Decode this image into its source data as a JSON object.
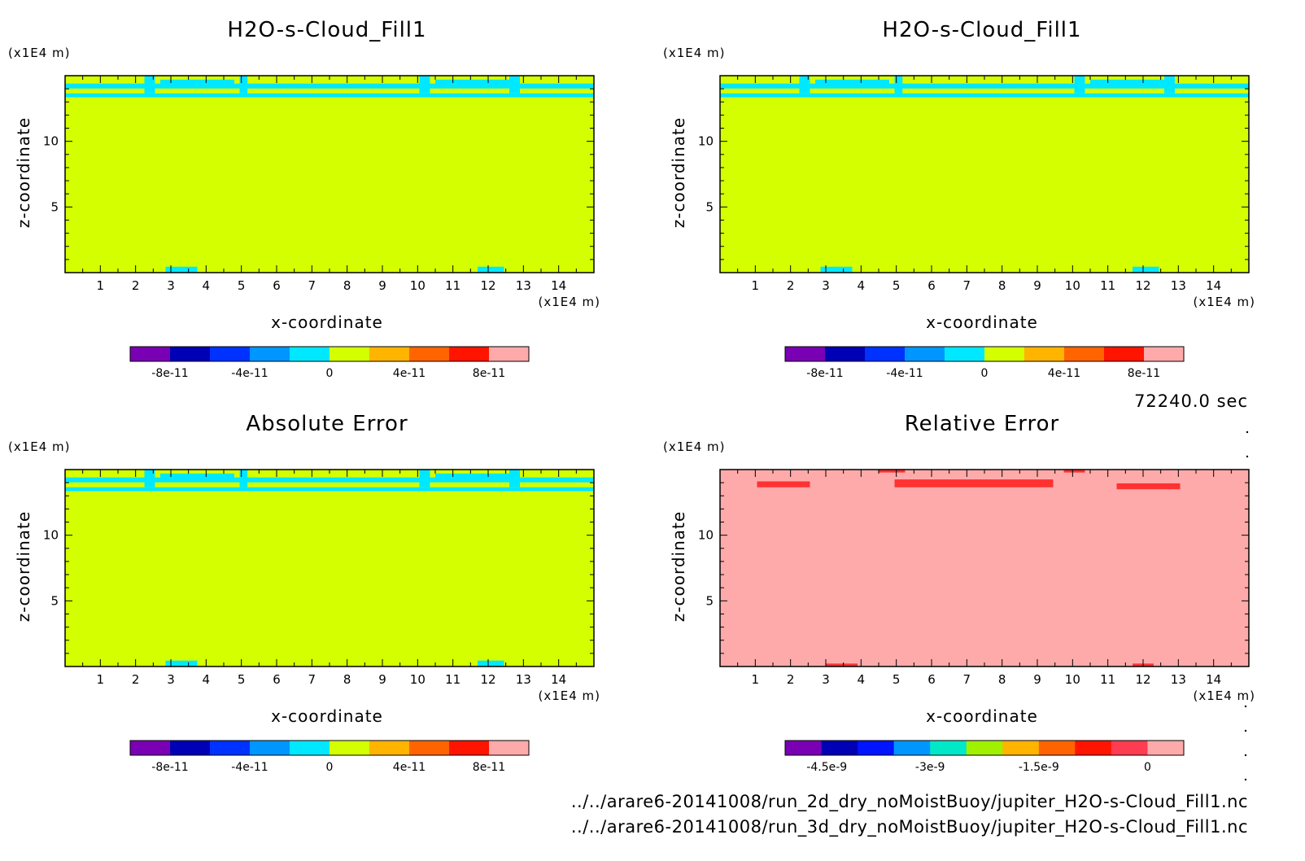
{
  "time_label": "72240.0 sec",
  "files": [
    "../../arare6-20141008/run_2d_dry_noMoistBuoy/jupiter_H2O-s-Cloud_Fill1.nc",
    "../../arare6-20141008/run_3d_dry_noMoistBuoy/jupiter_H2O-s-Cloud_Fill1.nc"
  ],
  "chart_data": [
    {
      "type": "heatmap",
      "title": "H2O-s-Cloud_Fill1",
      "xlabel": "x-coordinate",
      "ylabel": "z-coordinate",
      "x_unit": "(x1E4 m)",
      "y_unit": "(x1E4 m)",
      "x_ticks": [
        "1",
        "2",
        "3",
        "4",
        "5",
        "6",
        "7",
        "8",
        "9",
        "10",
        "11",
        "12",
        "13",
        "14"
      ],
      "y_ticks": [
        "5",
        "10"
      ],
      "xlim": [
        0,
        15
      ],
      "ylim": [
        0,
        15
      ],
      "background_value": 0,
      "background_color": "#d4ff00",
      "feature_color": "#00e8ff",
      "colorbar": {
        "colors": [
          "#7a00b4",
          "#0000b4",
          "#0032ff",
          "#0096ff",
          "#00e8ff",
          "#d4ff00",
          "#ffb400",
          "#ff6400",
          "#ff1400",
          "#ffaaaa"
        ],
        "tick_labels": [
          "-8e-11",
          "-4e-11",
          "0",
          "4e-11",
          "8e-11"
        ],
        "tick_boundaries": [
          1,
          3,
          5,
          7,
          9
        ]
      }
    },
    {
      "type": "heatmap",
      "title": "H2O-s-Cloud_Fill1",
      "xlabel": "x-coordinate",
      "ylabel": "z-coordinate",
      "x_unit": "(x1E4 m)",
      "y_unit": "(x1E4 m)",
      "x_ticks": [
        "1",
        "2",
        "3",
        "4",
        "5",
        "6",
        "7",
        "8",
        "9",
        "10",
        "11",
        "12",
        "13",
        "14"
      ],
      "y_ticks": [
        "5",
        "10"
      ],
      "xlim": [
        0,
        15
      ],
      "ylim": [
        0,
        15
      ],
      "background_value": 0,
      "background_color": "#d4ff00",
      "feature_color": "#00e8ff",
      "colorbar": {
        "colors": [
          "#7a00b4",
          "#0000b4",
          "#0032ff",
          "#0096ff",
          "#00e8ff",
          "#d4ff00",
          "#ffb400",
          "#ff6400",
          "#ff1400",
          "#ffaaaa"
        ],
        "tick_labels": [
          "-8e-11",
          "-4e-11",
          "0",
          "4e-11",
          "8e-11"
        ],
        "tick_boundaries": [
          1,
          3,
          5,
          7,
          9
        ]
      }
    },
    {
      "type": "heatmap",
      "title": "Absolute Error",
      "xlabel": "x-coordinate",
      "ylabel": "z-coordinate",
      "x_unit": "(x1E4 m)",
      "y_unit": "(x1E4 m)",
      "x_ticks": [
        "1",
        "2",
        "3",
        "4",
        "5",
        "6",
        "7",
        "8",
        "9",
        "10",
        "11",
        "12",
        "13",
        "14"
      ],
      "y_ticks": [
        "5",
        "10"
      ],
      "xlim": [
        0,
        15
      ],
      "ylim": [
        0,
        15
      ],
      "background_value": 0,
      "background_color": "#d4ff00",
      "feature_color": "#00e8ff",
      "colorbar": {
        "colors": [
          "#7a00b4",
          "#0000b4",
          "#0032ff",
          "#0096ff",
          "#00e8ff",
          "#d4ff00",
          "#ffb400",
          "#ff6400",
          "#ff1400",
          "#ffaaaa"
        ],
        "tick_labels": [
          "-8e-11",
          "-4e-11",
          "0",
          "4e-11",
          "8e-11"
        ],
        "tick_boundaries": [
          1,
          3,
          5,
          7,
          9
        ]
      }
    },
    {
      "type": "heatmap",
      "title": "Relative Error",
      "xlabel": "x-coordinate",
      "ylabel": "z-coordinate",
      "x_unit": "(x1E4 m)",
      "y_unit": "(x1E4 m)",
      "x_ticks": [
        "1",
        "2",
        "3",
        "4",
        "5",
        "6",
        "7",
        "8",
        "9",
        "10",
        "11",
        "12",
        "13",
        "14"
      ],
      "y_ticks": [
        "5",
        "10"
      ],
      "xlim": [
        0,
        15
      ],
      "ylim": [
        0,
        15
      ],
      "background_value": 0,
      "background_color": "#ffaaaa",
      "feature_color": "#ff3232",
      "colorbar": {
        "colors": [
          "#7a00b4",
          "#0000b4",
          "#0014ff",
          "#0096ff",
          "#00e8c8",
          "#a0f000",
          "#ffb400",
          "#ff6400",
          "#ff1400",
          "#ff3c50",
          "#ffaaaa"
        ],
        "tick_labels": [
          "-4.5e-9",
          "-3e-9",
          "-1.5e-9",
          "0"
        ],
        "tick_boundaries": [
          1.15,
          4,
          7,
          10
        ]
      }
    }
  ]
}
